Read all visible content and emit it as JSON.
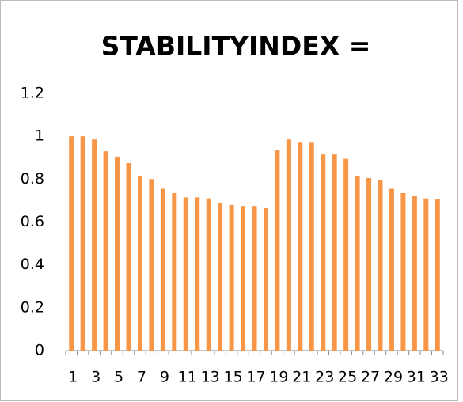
{
  "chart_data": {
    "type": "bar",
    "title": "STABILITYINDEX =",
    "categories": [
      1,
      null,
      3,
      null,
      5,
      null,
      7,
      null,
      9,
      null,
      11,
      null,
      13,
      null,
      15,
      null,
      17,
      null,
      19,
      null,
      21,
      null,
      23,
      null,
      25,
      null,
      27,
      null,
      29,
      null,
      31,
      null,
      33
    ],
    "values": [
      1.0,
      1.0,
      0.985,
      0.93,
      0.905,
      0.875,
      0.815,
      0.8,
      0.755,
      0.735,
      0.715,
      0.715,
      0.71,
      0.69,
      0.68,
      0.675,
      0.675,
      0.665,
      0.935,
      0.985,
      0.97,
      0.97,
      0.915,
      0.915,
      0.895,
      0.815,
      0.805,
      0.795,
      0.755,
      0.735,
      0.72,
      0.71,
      0.705
    ],
    "color": "#f79646",
    "ylim": [
      0,
      1.2
    ],
    "yticks": [
      0,
      0.2,
      0.4,
      0.6,
      0.8,
      1,
      1.2
    ],
    "grid": false
  }
}
